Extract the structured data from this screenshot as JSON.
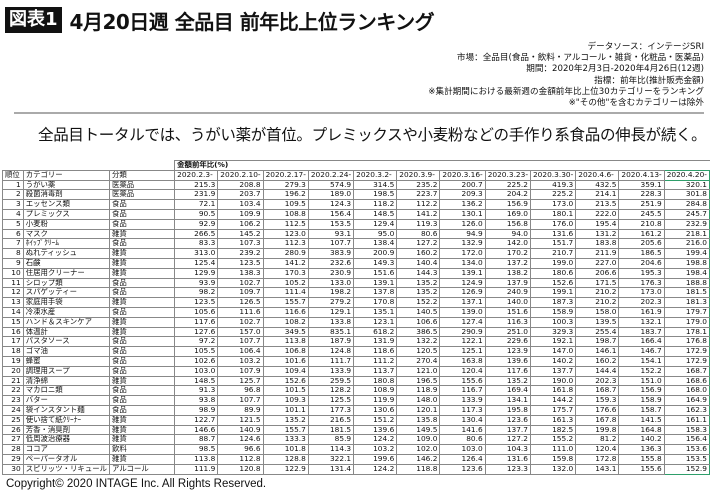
{
  "header": {
    "figure_label": "図表1",
    "title": "4月20日週 全品目 前年比上位ランキング"
  },
  "notes": [
    "データソース：インテージSRI",
    "市場：全品目(食品・飲料・アルコール・雑貨・化粧品・医薬品)",
    "期間：2020年2月3日-2020年4月26日(12週)",
    "指標：前年比(推計販売金額)",
    "※集計期間における最新週の金額前年比上位30カテゴリーをランキング",
    "※\"その他\"を含むカテゴリーは除外"
  ],
  "subtitle": "全品目トータルでは、うがい薬が首位。プレミックスや小麦粉などの手作り系食品の伸長が続く。",
  "table": {
    "group_header": "金額前年比(%)",
    "columns": [
      "順位",
      "カテゴリー",
      "分類",
      "2020.2.3-",
      "2020.2.10-",
      "2020.2.17-",
      "2020.2.24-",
      "2020.3.2-",
      "2020.3.9-",
      "2020.3.16-",
      "2020.3.23-",
      "2020.3.30-",
      "2020.4.6-",
      "2020.4.13-",
      "2020.4.20-"
    ],
    "highlight_color": "#2e9e6a",
    "rows": [
      [
        "1",
        "うがい薬",
        "医薬品",
        "215.3",
        "208.8",
        "279.3",
        "574.9",
        "314.5",
        "235.2",
        "200.7",
        "225.2",
        "419.3",
        "432.5",
        "359.1",
        "320.1"
      ],
      [
        "2",
        "殺菌消毒剤",
        "医薬品",
        "231.9",
        "203.7",
        "196.2",
        "189.0",
        "198.5",
        "223.7",
        "209.3",
        "204.2",
        "225.2",
        "214.1",
        "228.3",
        "301.8"
      ],
      [
        "3",
        "エッセンス類",
        "食品",
        "72.1",
        "103.4",
        "109.5",
        "124.3",
        "118.2",
        "112.2",
        "136.2",
        "156.9",
        "173.0",
        "213.5",
        "251.9",
        "284.8"
      ],
      [
        "4",
        "プレミックス",
        "食品",
        "90.5",
        "109.9",
        "108.8",
        "156.4",
        "148.5",
        "141.2",
        "130.1",
        "169.0",
        "180.1",
        "222.0",
        "245.5",
        "245.7"
      ],
      [
        "5",
        "小麦粉",
        "食品",
        "92.9",
        "106.2",
        "112.5",
        "153.5",
        "129.4",
        "119.3",
        "126.0",
        "156.8",
        "176.0",
        "195.4",
        "210.8",
        "232.9"
      ],
      [
        "6",
        "マスク",
        "雑貨",
        "266.5",
        "145.2",
        "123.0",
        "93.1",
        "95.0",
        "80.6",
        "94.9",
        "94.0",
        "131.6",
        "131.2",
        "161.2",
        "218.1"
      ],
      [
        "7",
        "ﾎｲｯﾌﾟｸﾘｰﾑ",
        "食品",
        "83.3",
        "107.3",
        "112.3",
        "107.7",
        "138.4",
        "127.2",
        "132.9",
        "142.0",
        "151.7",
        "183.8",
        "205.6",
        "216.0"
      ],
      [
        "8",
        "ぬれティッシュ",
        "雑貨",
        "313.0",
        "239.2",
        "280.9",
        "383.9",
        "200.9",
        "160.2",
        "172.0",
        "170.2",
        "210.7",
        "211.9",
        "186.5",
        "199.4"
      ],
      [
        "9",
        "石鹸",
        "雑貨",
        "125.4",
        "123.5",
        "141.2",
        "232.6",
        "149.3",
        "140.4",
        "134.0",
        "137.2",
        "199.0",
        "227.0",
        "204.6",
        "198.8"
      ],
      [
        "10",
        "住居用クリーナー",
        "雑貨",
        "129.9",
        "138.3",
        "170.3",
        "230.9",
        "151.6",
        "144.3",
        "139.1",
        "138.2",
        "180.6",
        "206.6",
        "195.3",
        "198.4"
      ],
      [
        "11",
        "シロップ類",
        "食品",
        "93.9",
        "102.7",
        "105.2",
        "133.0",
        "139.1",
        "135.2",
        "124.9",
        "137.9",
        "152.6",
        "171.5",
        "176.3",
        "188.8"
      ],
      [
        "12",
        "スパゲッティー",
        "食品",
        "98.2",
        "109.7",
        "111.4",
        "198.2",
        "137.8",
        "135.2",
        "126.9",
        "240.9",
        "199.1",
        "210.2",
        "173.0",
        "181.5"
      ],
      [
        "13",
        "家庭用手袋",
        "雑貨",
        "123.5",
        "126.5",
        "155.7",
        "279.2",
        "170.8",
        "152.2",
        "137.1",
        "140.0",
        "187.3",
        "210.2",
        "202.3",
        "181.3"
      ],
      [
        "14",
        "冷凍水産",
        "食品",
        "105.6",
        "111.6",
        "116.6",
        "129.1",
        "135.1",
        "140.5",
        "139.0",
        "151.6",
        "158.9",
        "158.0",
        "161.9",
        "179.7"
      ],
      [
        "15",
        "ハンド＆スキンケア",
        "雑貨",
        "117.6",
        "102.7",
        "108.2",
        "133.8",
        "123.1",
        "106.6",
        "127.4",
        "116.3",
        "100.3",
        "139.5",
        "132.1",
        "179.0"
      ],
      [
        "16",
        "体温計",
        "雑貨",
        "127.6",
        "157.0",
        "349.5",
        "835.1",
        "618.2",
        "386.5",
        "290.9",
        "251.0",
        "329.3",
        "255.4",
        "183.7",
        "178.1"
      ],
      [
        "17",
        "パスタソース",
        "食品",
        "97.2",
        "107.7",
        "113.8",
        "187.9",
        "131.9",
        "132.2",
        "122.1",
        "229.6",
        "192.1",
        "198.7",
        "166.4",
        "176.8"
      ],
      [
        "18",
        "ゴマ油",
        "食品",
        "105.5",
        "106.4",
        "106.8",
        "124.8",
        "118.6",
        "120.5",
        "125.1",
        "123.9",
        "147.0",
        "146.1",
        "146.7",
        "172.9"
      ],
      [
        "19",
        "蜂蜜",
        "食品",
        "102.6",
        "103.2",
        "101.6",
        "111.7",
        "111.2",
        "270.4",
        "163.8",
        "139.6",
        "140.2",
        "160.2",
        "154.1",
        "172.9"
      ],
      [
        "20",
        "調理用スープ",
        "食品",
        "103.0",
        "107.9",
        "109.4",
        "133.9",
        "113.7",
        "121.0",
        "120.4",
        "117.6",
        "137.7",
        "144.4",
        "152.2",
        "168.7"
      ],
      [
        "21",
        "清浄綿",
        "雑貨",
        "148.5",
        "125.7",
        "152.6",
        "259.5",
        "180.8",
        "196.5",
        "155.6",
        "135.2",
        "190.0",
        "202.3",
        "151.0",
        "168.6"
      ],
      [
        "22",
        "マカロニ類",
        "食品",
        "91.3",
        "96.8",
        "101.5",
        "128.2",
        "108.9",
        "118.9",
        "116.7",
        "169.4",
        "161.8",
        "168.7",
        "156.9",
        "168.0"
      ],
      [
        "23",
        "バター",
        "食品",
        "93.8",
        "107.7",
        "109.3",
        "125.5",
        "119.9",
        "148.0",
        "133.9",
        "134.1",
        "144.2",
        "159.3",
        "158.9",
        "164.9"
      ],
      [
        "24",
        "袋インスタント麺",
        "食品",
        "98.9",
        "89.9",
        "101.1",
        "177.3",
        "130.6",
        "120.1",
        "117.3",
        "195.8",
        "175.7",
        "176.6",
        "158.7",
        "162.3"
      ],
      [
        "25",
        "使い捨て紙ｸﾘｰﾅｰ",
        "雑貨",
        "122.7",
        "121.5",
        "135.2",
        "216.5",
        "151.2",
        "135.8",
        "130.4",
        "123.6",
        "161.3",
        "167.8",
        "141.5",
        "161.1"
      ],
      [
        "26",
        "芳香・消臭剤",
        "雑貨",
        "146.6",
        "140.9",
        "155.7",
        "181.5",
        "139.6",
        "149.5",
        "141.6",
        "137.7",
        "182.5",
        "199.8",
        "164.8",
        "158.3"
      ],
      [
        "27",
        "低周波治療器",
        "雑貨",
        "88.7",
        "124.6",
        "133.3",
        "85.9",
        "124.2",
        "109.0",
        "80.6",
        "127.2",
        "155.2",
        "81.2",
        "140.2",
        "156.4"
      ],
      [
        "28",
        "ココア",
        "飲料",
        "98.5",
        "96.6",
        "101.8",
        "114.3",
        "103.2",
        "102.0",
        "103.0",
        "104.3",
        "111.0",
        "120.4",
        "136.3",
        "153.6"
      ],
      [
        "29",
        "ペーパータオル",
        "雑貨",
        "113.8",
        "112.8",
        "128.8",
        "322.1",
        "199.6",
        "146.2",
        "126.4",
        "131.6",
        "159.8",
        "172.8",
        "155.8",
        "153.5"
      ],
      [
        "30",
        "スピリッツ・リキュール",
        "アルコール",
        "111.9",
        "120.8",
        "122.9",
        "131.4",
        "124.2",
        "118.8",
        "123.6",
        "123.3",
        "132.0",
        "143.1",
        "155.6",
        "152.9"
      ]
    ]
  },
  "footer": {
    "copyright": "Copyright© 2020 INTAGE Inc. All Rights Reserved."
  }
}
